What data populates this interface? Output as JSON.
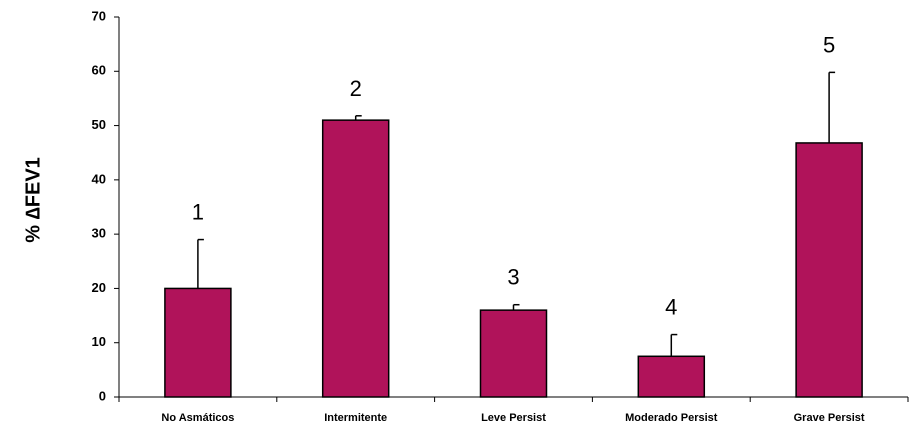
{
  "chart_data": {
    "type": "bar",
    "title": "",
    "xlabel": "",
    "ylabel": "% ∆FEV1",
    "ylim": [
      0,
      70
    ],
    "yticks": [
      0,
      10,
      20,
      30,
      40,
      50,
      60,
      70
    ],
    "grid": false,
    "categories": [
      "No Asmáticos",
      "Intermitente",
      "Leve Persist",
      "Moderado Persist",
      "Grave Persist"
    ],
    "values": [
      20,
      51,
      16,
      7.5,
      46.8
    ],
    "error_plus": [
      9,
      0.8,
      1,
      4,
      13
    ],
    "bar_labels": [
      "1",
      "2",
      "3",
      "4",
      "5"
    ],
    "bar_color": "#b0135a"
  }
}
